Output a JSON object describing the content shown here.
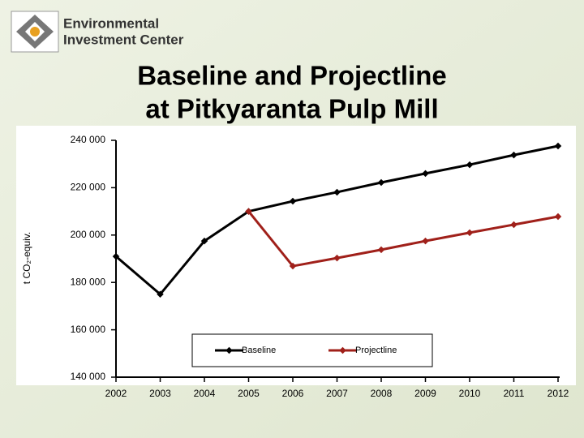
{
  "logo": {
    "lines": [
      "Environmental",
      "Investment Center"
    ]
  },
  "chart_data": {
    "type": "line",
    "title": [
      "Baseline and Projectline",
      "at Pitkyaranta Pulp Mill"
    ],
    "y_label": "t CO₂-equiv.",
    "categories": [
      "2002",
      "2003",
      "2004",
      "2005",
      "2006",
      "2007",
      "2008",
      "2009",
      "2010",
      "2011",
      "2012"
    ],
    "series": [
      {
        "name": "Baseline",
        "color": "#000000",
        "values": [
          191000,
          175000,
          197500,
          210000,
          214300,
          218100,
          222200,
          226000,
          229700,
          233800,
          237600
        ]
      },
      {
        "name": "Projectline",
        "color": "#a0201a",
        "values": [
          null,
          null,
          null,
          210000,
          186900,
          190300,
          193800,
          197500,
          201000,
          204400,
          207800
        ]
      }
    ],
    "ylim": [
      140000,
      240000
    ],
    "yticks": [
      {
        "value": 140000,
        "label": "140 000"
      },
      {
        "value": 160000,
        "label": "160 000"
      },
      {
        "value": 180000,
        "label": "180 000"
      },
      {
        "value": 200000,
        "label": "200 000"
      },
      {
        "value": 220000,
        "label": "220 000"
      },
      {
        "value": 240000,
        "label": "240 000"
      }
    ],
    "grid": false,
    "legend": "bottom"
  }
}
